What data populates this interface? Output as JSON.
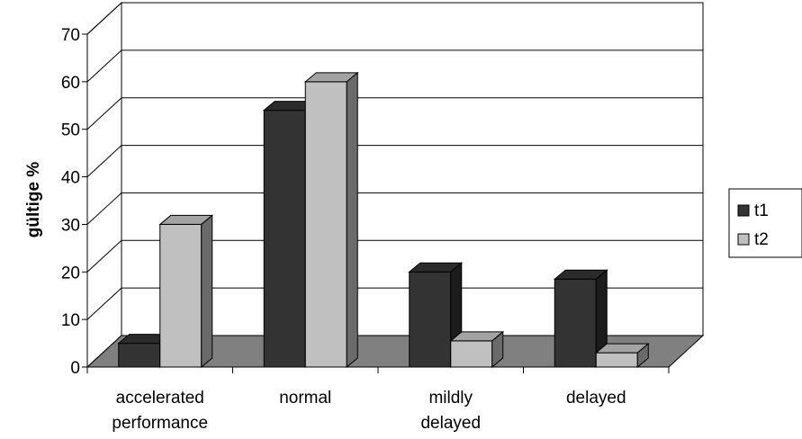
{
  "chart_data": {
    "type": "bar",
    "ylabel": "gültige %",
    "xlabel": "",
    "categories": [
      [
        "accelerated",
        "performance"
      ],
      [
        "normal"
      ],
      [
        "mildly",
        "delayed"
      ],
      [
        "delayed"
      ]
    ],
    "series": [
      {
        "name": "t1",
        "values": [
          5,
          54,
          20,
          18.5
        ],
        "color": "#333333"
      },
      {
        "name": "t2",
        "values": [
          30,
          60,
          5.5,
          3
        ],
        "color": "#c0c0c0"
      }
    ],
    "ylim": [
      0,
      70
    ],
    "yticks": [
      0,
      10,
      20,
      30,
      40,
      50,
      60,
      70
    ],
    "grid": true,
    "legend": "right",
    "style": "3d-clustered-column",
    "floor_color": "#808080"
  }
}
